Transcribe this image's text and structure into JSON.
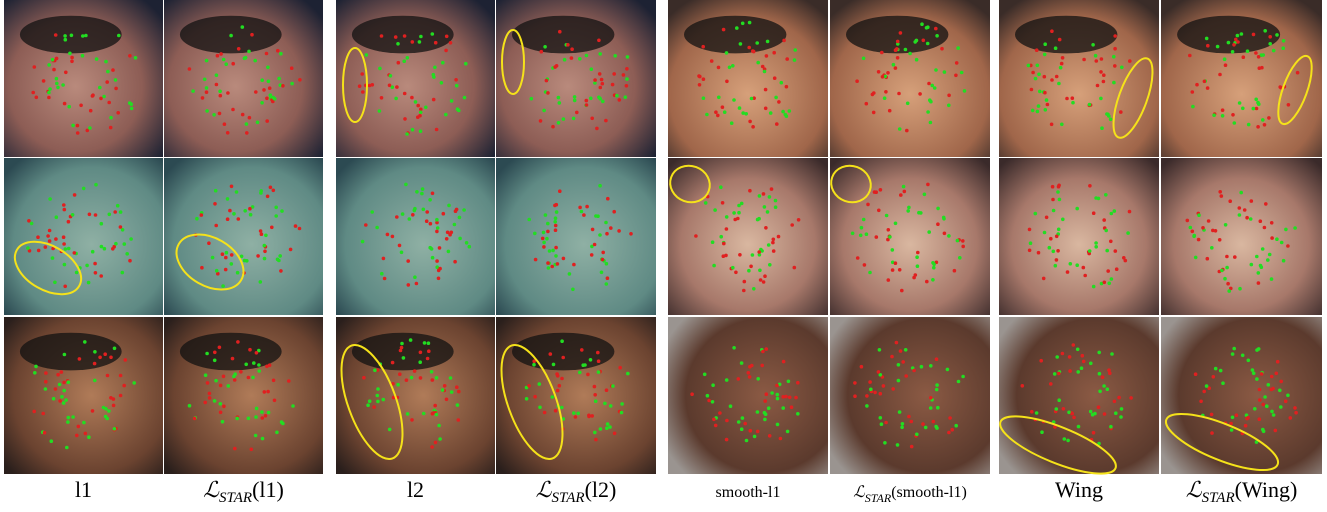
{
  "figure": {
    "captions": [
      {
        "main": "l1"
      },
      {
        "main": "ℒ",
        "sub": "STAR",
        "arg": "(l1)"
      },
      {
        "main": "l2"
      },
      {
        "main": "ℒ",
        "sub": "STAR",
        "arg": "(l2)"
      },
      {
        "main": "smooth-l1"
      },
      {
        "main": "ℒ",
        "sub": "STAR",
        "arg": "(smooth-l1)"
      },
      {
        "main": "Wing"
      },
      {
        "main": "ℒ",
        "sub": "STAR",
        "arg": "(Wing)"
      }
    ]
  }
}
